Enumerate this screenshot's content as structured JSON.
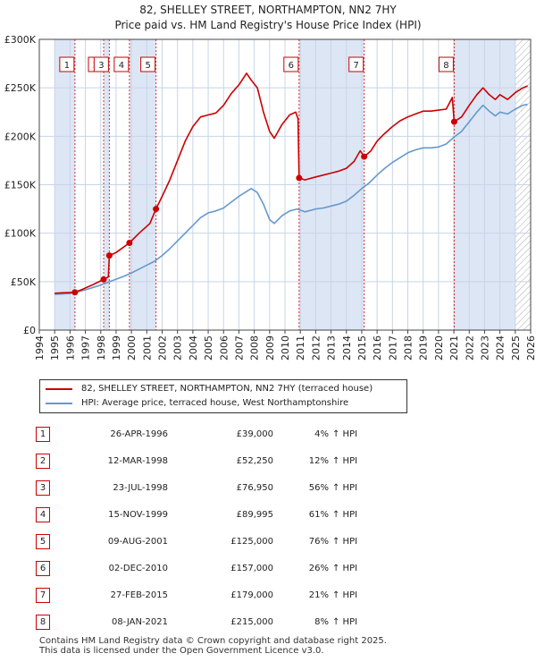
{
  "title_line1": "82, SHELLEY STREET, NORTHAMPTON, NN2 7HY",
  "title_line2": "Price paid vs. HM Land Registry's House Price Index (HPI)",
  "colors": {
    "red": "#cc0000",
    "blue": "#6699cc",
    "band": "#dde6f5",
    "grid": "#c8d4e8"
  },
  "chart_data": {
    "type": "line",
    "title": "Price paid vs. HM Land Registry's House Price Index (HPI)",
    "xlim": [
      1994,
      2026
    ],
    "ylim": [
      0,
      300000
    ],
    "y_ticks": [
      0,
      50000,
      100000,
      150000,
      200000,
      250000,
      300000
    ],
    "y_tick_labels": [
      "£0",
      "£50K",
      "£100K",
      "£150K",
      "£200K",
      "£250K",
      "£300K"
    ],
    "x_tick_labels": [
      "1994",
      "1995",
      "1996",
      "1997",
      "1998",
      "1999",
      "2000",
      "2001",
      "2002",
      "2003",
      "2004",
      "2005",
      "2006",
      "2007",
      "2008",
      "2009",
      "2010",
      "2011",
      "2012",
      "2013",
      "2014",
      "2015",
      "2016",
      "2017",
      "2018",
      "2019",
      "2020",
      "2021",
      "2022",
      "2023",
      "2024",
      "2025",
      "2026"
    ],
    "shaded_ranges": [
      [
        1995,
        1996.32
      ],
      [
        1998.2,
        1998.56
      ],
      [
        1999.87,
        2001.6
      ],
      [
        2010.92,
        2015.16
      ],
      [
        2021.02,
        2025.0
      ]
    ],
    "hatched_range": [
      2025.0,
      2026
    ],
    "series": [
      {
        "name": "82, SHELLEY STREET, NORTHAMPTON, NN2 7HY (terraced house)",
        "color": "#cc0000",
        "points": [
          [
            1995.0,
            38000
          ],
          [
            1995.5,
            38500
          ],
          [
            1996.32,
            39000
          ],
          [
            1996.8,
            42000
          ],
          [
            1997.5,
            47000
          ],
          [
            1998.19,
            52250
          ],
          [
            1998.5,
            55000
          ],
          [
            1998.56,
            76950
          ],
          [
            1999.0,
            80000
          ],
          [
            1999.87,
            89995
          ],
          [
            2000.5,
            100000
          ],
          [
            2001.2,
            110000
          ],
          [
            2001.6,
            125000
          ],
          [
            2002.0,
            138000
          ],
          [
            2002.5,
            155000
          ],
          [
            2003.0,
            175000
          ],
          [
            2003.5,
            195000
          ],
          [
            2004.0,
            210000
          ],
          [
            2004.5,
            220000
          ],
          [
            2005.0,
            222000
          ],
          [
            2005.5,
            224000
          ],
          [
            2006.0,
            232000
          ],
          [
            2006.5,
            244000
          ],
          [
            2007.0,
            253000
          ],
          [
            2007.5,
            265000
          ],
          [
            2007.8,
            258000
          ],
          [
            2008.2,
            250000
          ],
          [
            2008.6,
            225000
          ],
          [
            2009.0,
            205000
          ],
          [
            2009.3,
            198000
          ],
          [
            2009.8,
            212000
          ],
          [
            2010.3,
            222000
          ],
          [
            2010.7,
            225000
          ],
          [
            2010.85,
            218000
          ],
          [
            2010.92,
            157000
          ],
          [
            2011.3,
            155000
          ],
          [
            2012.0,
            158000
          ],
          [
            2012.5,
            160000
          ],
          [
            2013.0,
            162000
          ],
          [
            2013.5,
            164000
          ],
          [
            2014.0,
            167000
          ],
          [
            2014.5,
            174000
          ],
          [
            2014.9,
            185000
          ],
          [
            2015.16,
            179000
          ],
          [
            2015.6,
            185000
          ],
          [
            2016.0,
            195000
          ],
          [
            2016.5,
            203000
          ],
          [
            2017.0,
            210000
          ],
          [
            2017.5,
            216000
          ],
          [
            2018.0,
            220000
          ],
          [
            2018.5,
            223000
          ],
          [
            2019.0,
            226000
          ],
          [
            2019.5,
            226000
          ],
          [
            2020.0,
            227000
          ],
          [
            2020.5,
            228000
          ],
          [
            2020.9,
            240000
          ],
          [
            2021.02,
            215000
          ],
          [
            2021.5,
            220000
          ],
          [
            2022.0,
            232000
          ],
          [
            2022.5,
            243000
          ],
          [
            2022.9,
            250000
          ],
          [
            2023.3,
            243000
          ],
          [
            2023.7,
            238000
          ],
          [
            2024.0,
            243000
          ],
          [
            2024.5,
            238000
          ],
          [
            2025.0,
            245000
          ],
          [
            2025.5,
            250000
          ],
          [
            2025.8,
            252000
          ]
        ]
      },
      {
        "name": "HPI: Average price, terraced house, West Northamptonshire",
        "color": "#6699cc",
        "points": [
          [
            1995.0,
            37000
          ],
          [
            1995.5,
            37300
          ],
          [
            1996.0,
            37800
          ],
          [
            1996.5,
            39500
          ],
          [
            1997.0,
            41500
          ],
          [
            1997.5,
            44000
          ],
          [
            1998.0,
            46500
          ],
          [
            1998.5,
            49500
          ],
          [
            1999.0,
            52500
          ],
          [
            1999.5,
            55500
          ],
          [
            2000.0,
            59000
          ],
          [
            2000.5,
            63000
          ],
          [
            2001.0,
            67000
          ],
          [
            2001.5,
            71000
          ],
          [
            2002.0,
            77000
          ],
          [
            2002.5,
            84000
          ],
          [
            2003.0,
            92000
          ],
          [
            2003.5,
            100000
          ],
          [
            2004.0,
            108000
          ],
          [
            2004.5,
            116000
          ],
          [
            2005.0,
            121000
          ],
          [
            2005.5,
            123000
          ],
          [
            2006.0,
            126000
          ],
          [
            2006.5,
            132000
          ],
          [
            2007.0,
            138000
          ],
          [
            2007.5,
            143000
          ],
          [
            2007.8,
            146000
          ],
          [
            2008.2,
            142000
          ],
          [
            2008.6,
            130000
          ],
          [
            2009.0,
            114000
          ],
          [
            2009.3,
            110000
          ],
          [
            2009.8,
            118000
          ],
          [
            2010.3,
            123000
          ],
          [
            2010.8,
            125000
          ],
          [
            2011.3,
            122000
          ],
          [
            2012.0,
            125000
          ],
          [
            2012.5,
            126000
          ],
          [
            2013.0,
            128000
          ],
          [
            2013.5,
            130000
          ],
          [
            2014.0,
            133000
          ],
          [
            2014.5,
            139000
          ],
          [
            2015.0,
            146000
          ],
          [
            2015.5,
            152000
          ],
          [
            2016.0,
            160000
          ],
          [
            2016.5,
            167000
          ],
          [
            2017.0,
            173000
          ],
          [
            2017.5,
            178000
          ],
          [
            2018.0,
            183000
          ],
          [
            2018.5,
            186000
          ],
          [
            2019.0,
            188000
          ],
          [
            2019.5,
            188000
          ],
          [
            2020.0,
            189000
          ],
          [
            2020.5,
            192000
          ],
          [
            2021.0,
            199000
          ],
          [
            2021.5,
            205000
          ],
          [
            2022.0,
            215000
          ],
          [
            2022.5,
            225000
          ],
          [
            2022.9,
            232000
          ],
          [
            2023.3,
            226000
          ],
          [
            2023.7,
            221000
          ],
          [
            2024.0,
            225000
          ],
          [
            2024.5,
            223000
          ],
          [
            2025.0,
            228000
          ],
          [
            2025.5,
            232000
          ],
          [
            2025.8,
            233000
          ]
        ]
      }
    ],
    "sales": [
      {
        "n": "1",
        "t": 1996.32,
        "v": 39000
      },
      {
        "n": "2",
        "t": 1998.19,
        "v": 52250
      },
      {
        "n": "3",
        "t": 1998.56,
        "v": 76950
      },
      {
        "n": "4",
        "t": 1999.87,
        "v": 89995
      },
      {
        "n": "5",
        "t": 2001.6,
        "v": 125000
      },
      {
        "n": "6",
        "t": 2010.92,
        "v": 157000
      },
      {
        "n": "7",
        "t": 2015.16,
        "v": 179000
      },
      {
        "n": "8",
        "t": 2021.02,
        "v": 215000
      }
    ]
  },
  "legend": {
    "red_label": "82, SHELLEY STREET, NORTHAMPTON, NN2 7HY (terraced house)",
    "blue_label": "HPI: Average price, terraced house, West Northamptonshire"
  },
  "transactions": [
    {
      "n": "1",
      "date": "26-APR-1996",
      "price": "£39,000",
      "pct": "4%",
      "dir": "↑ HPI"
    },
    {
      "n": "2",
      "date": "12-MAR-1998",
      "price": "£52,250",
      "pct": "12%",
      "dir": "↑ HPI"
    },
    {
      "n": "3",
      "date": "23-JUL-1998",
      "price": "£76,950",
      "pct": "56%",
      "dir": "↑ HPI"
    },
    {
      "n": "4",
      "date": "15-NOV-1999",
      "price": "£89,995",
      "pct": "61%",
      "dir": "↑ HPI"
    },
    {
      "n": "5",
      "date": "09-AUG-2001",
      "price": "£125,000",
      "pct": "76%",
      "dir": "↑ HPI"
    },
    {
      "n": "6",
      "date": "02-DEC-2010",
      "price": "£157,000",
      "pct": "26%",
      "dir": "↑ HPI"
    },
    {
      "n": "7",
      "date": "27-FEB-2015",
      "price": "£179,000",
      "pct": "21%",
      "dir": "↑ HPI"
    },
    {
      "n": "8",
      "date": "08-JAN-2021",
      "price": "£215,000",
      "pct": "8%",
      "dir": "↑ HPI"
    }
  ],
  "footer_line1": "Contains HM Land Registry data © Crown copyright and database right 2025.",
  "footer_line2": "This data is licensed under the Open Government Licence v3.0."
}
